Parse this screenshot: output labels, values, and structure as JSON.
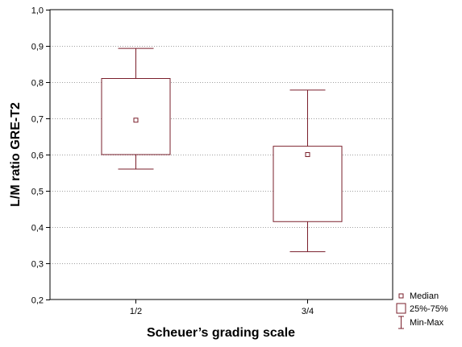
{
  "chart_data": {
    "type": "box",
    "title": "",
    "xlabel": "Scheuer’s grading scale",
    "ylabel": "L/M ratio GRE-T2",
    "ylim": [
      0.2,
      1.0
    ],
    "yticks": [
      "0,2",
      "0,3",
      "0,4",
      "0,5",
      "0,6",
      "0,7",
      "0,8",
      "0,9",
      "1,0"
    ],
    "ytick_values": [
      0.2,
      0.3,
      0.4,
      0.5,
      0.6,
      0.7,
      0.8,
      0.9,
      1.0
    ],
    "categories": [
      "1/2",
      "3/4"
    ],
    "boxes": [
      {
        "category": "1/2",
        "min": 0.56,
        "q1": 0.6,
        "median": 0.695,
        "q3": 0.81,
        "max": 0.893
      },
      {
        "category": "3/4",
        "min": 0.332,
        "q1": 0.415,
        "median": 0.6,
        "q3": 0.623,
        "max": 0.778
      }
    ],
    "grid": "horizontal dotted",
    "legend_position": "bottom-right",
    "legend": {
      "median": "Median",
      "box": "25%-75%",
      "whisker": "Min-Max"
    },
    "colors": {
      "box": "#7a1f2b",
      "grid": "#a0a0a0",
      "axis": "#000000"
    }
  }
}
